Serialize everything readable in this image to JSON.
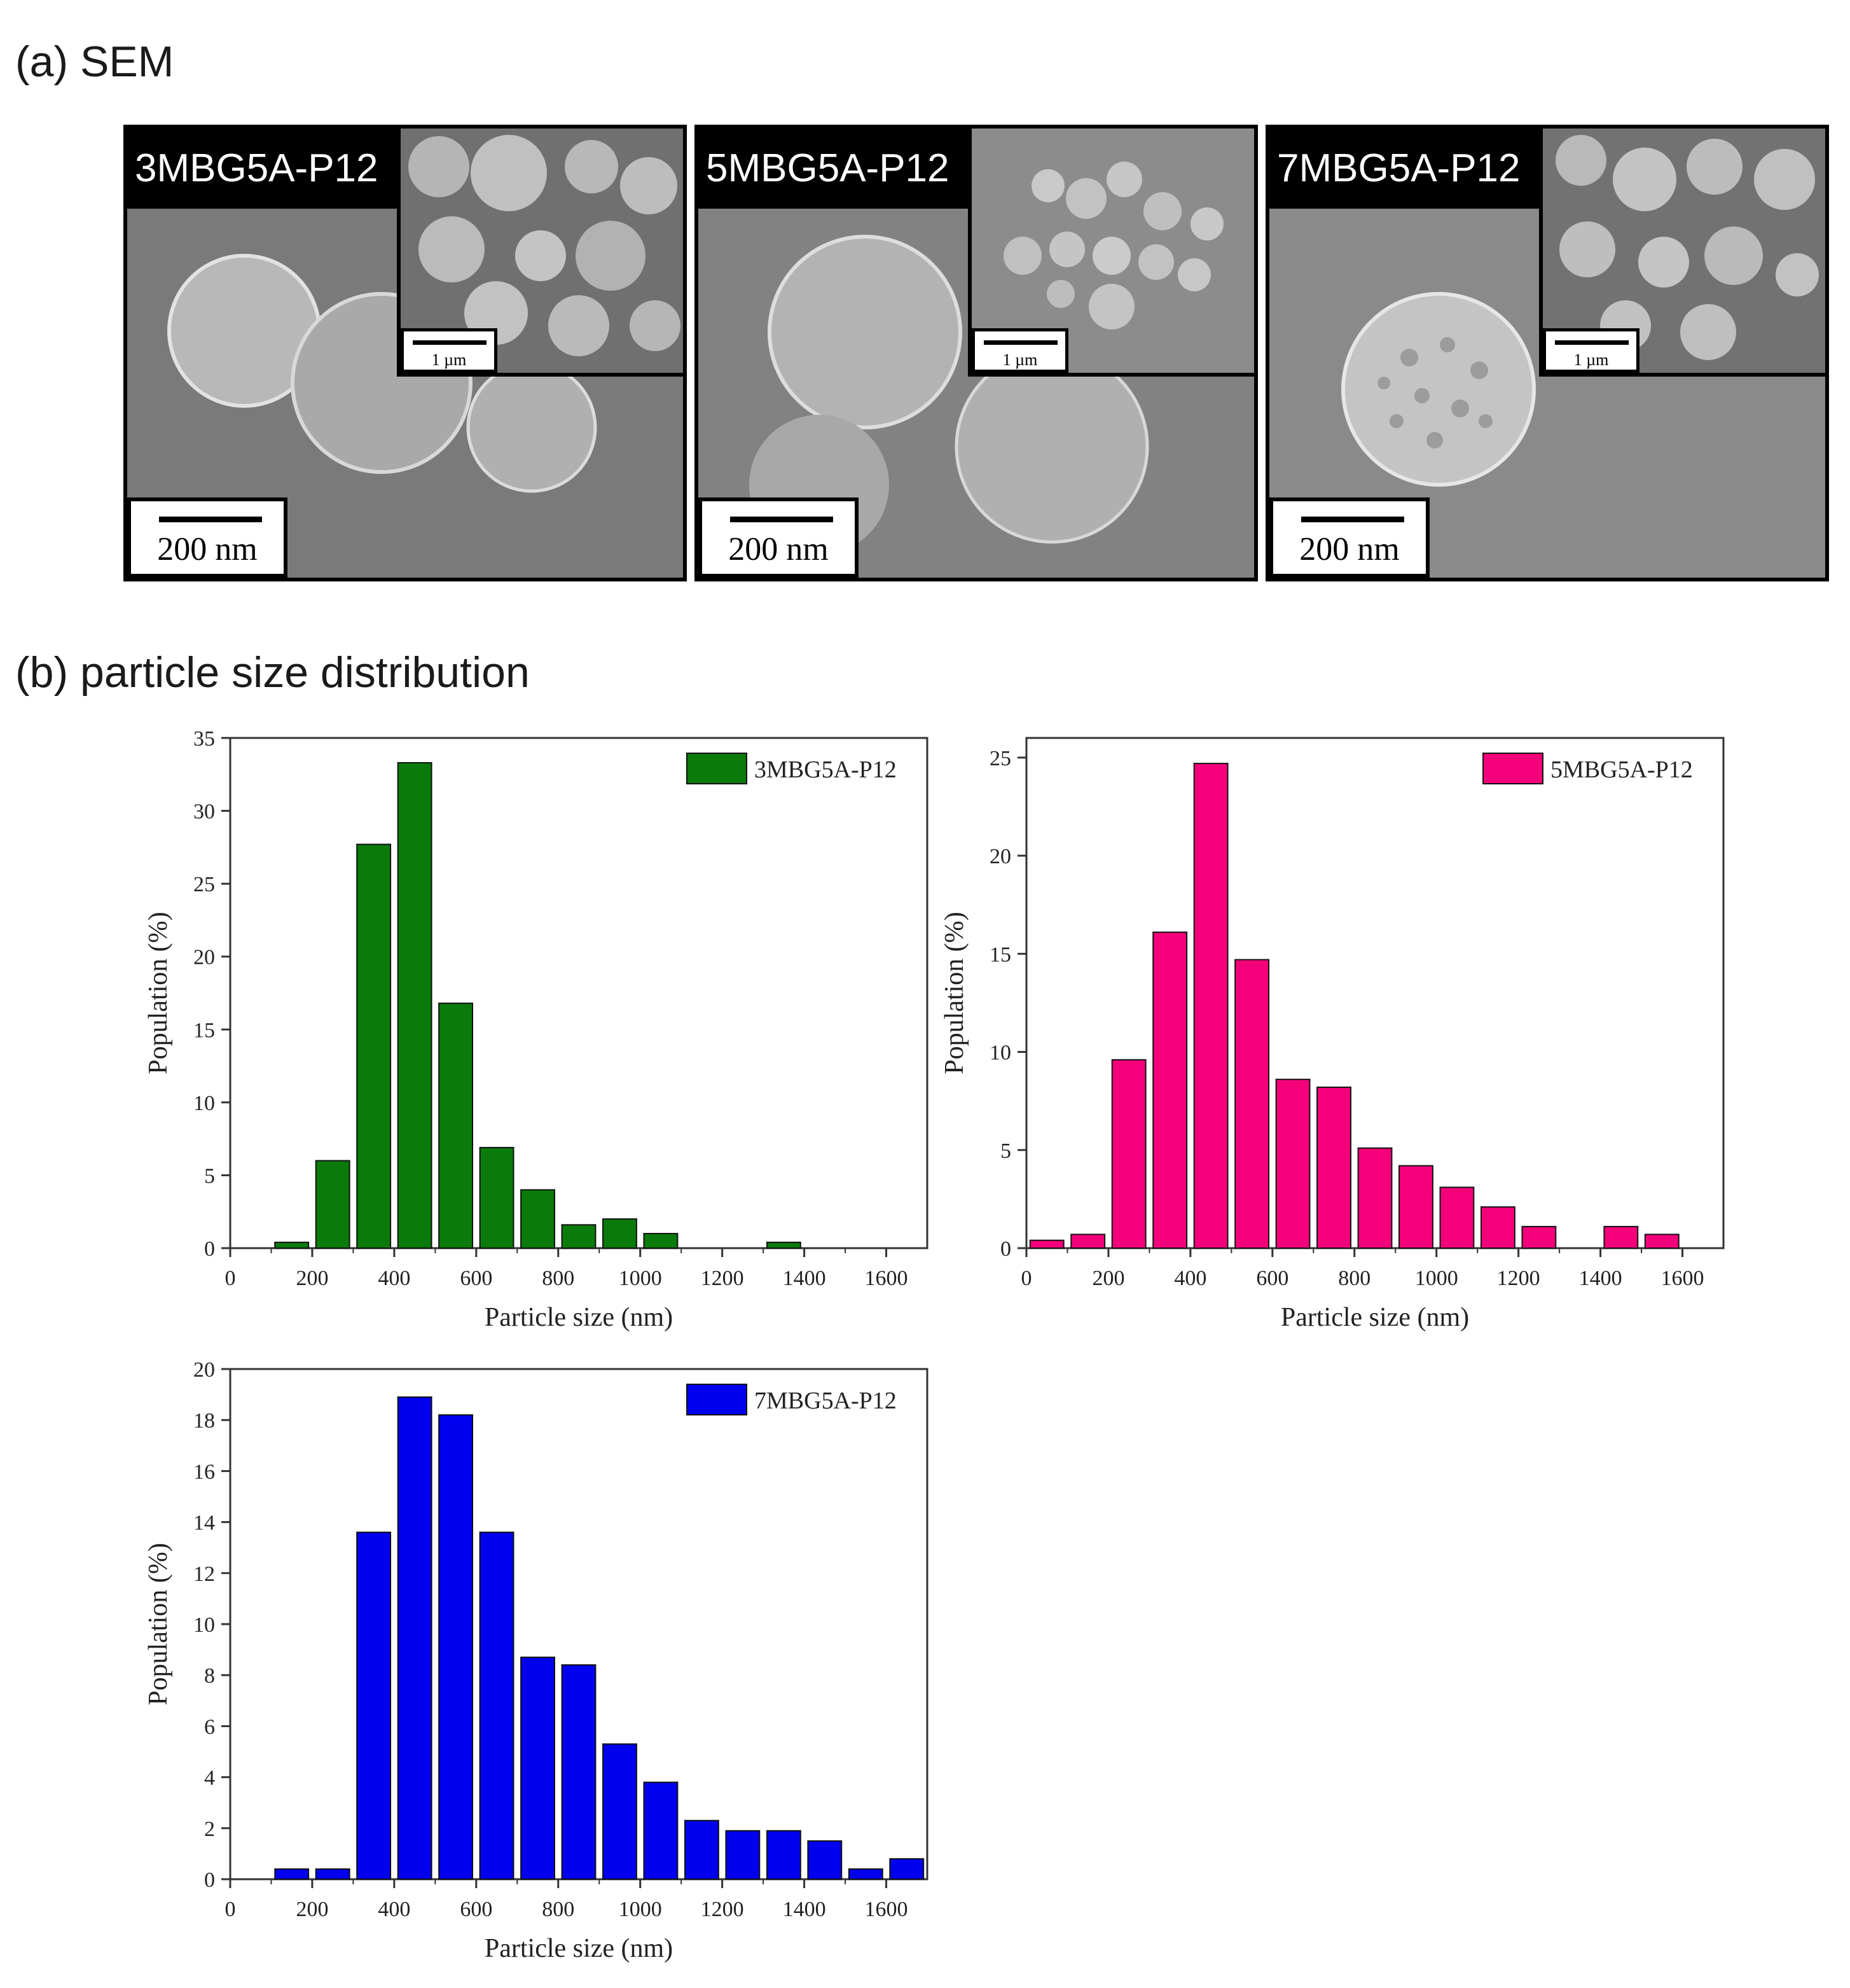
{
  "sections": {
    "a": "(a) SEM",
    "b": "(b) particle size distribution"
  },
  "sem_panels": [
    {
      "label": "3MBG5A-P12",
      "main_scale": "200 nm",
      "inset_scale": "1 µm"
    },
    {
      "label": "5MBG5A-P12",
      "main_scale": "200 nm",
      "inset_scale": "1 µm"
    },
    {
      "label": "7MBG5A-P12",
      "main_scale": "200 nm",
      "inset_scale": "1 µm"
    }
  ],
  "colors": {
    "green": "#0a7a0a",
    "pink": "#f5007b",
    "blue": "#0000ee"
  },
  "chart_data": [
    {
      "type": "bar",
      "title": "",
      "legend": "3MBG5A-P12",
      "legend_position": "top-right",
      "color": "#0a7a0a",
      "xlabel": "Particle size (nm)",
      "ylabel": "Population (%)",
      "xlim": [
        0,
        1700
      ],
      "ylim": [
        0,
        35
      ],
      "xticks": [
        0,
        200,
        400,
        600,
        800,
        1000,
        1200,
        1400,
        1600
      ],
      "yticks": [
        0,
        5,
        10,
        15,
        20,
        25,
        30,
        35
      ],
      "bin_width": 100,
      "x": [
        150,
        250,
        350,
        450,
        550,
        650,
        750,
        850,
        950,
        1050,
        1150,
        1250,
        1350
      ],
      "values": [
        0.4,
        6.0,
        27.7,
        33.3,
        16.8,
        6.9,
        4.0,
        1.6,
        2.0,
        1.0,
        0,
        0,
        0.4
      ]
    },
    {
      "type": "bar",
      "title": "",
      "legend": "5MBG5A-P12",
      "legend_position": "top-right",
      "color": "#f5007b",
      "xlabel": "Particle size (nm)",
      "ylabel": "Population (%)",
      "xlim": [
        0,
        1700
      ],
      "ylim": [
        0,
        26
      ],
      "xticks": [
        0,
        200,
        400,
        600,
        800,
        1000,
        1200,
        1400,
        1600
      ],
      "yticks": [
        0,
        5,
        10,
        15,
        20,
        25
      ],
      "bin_width": 100,
      "x": [
        50,
        150,
        250,
        350,
        450,
        550,
        650,
        750,
        850,
        950,
        1050,
        1150,
        1250,
        1350,
        1450,
        1550
      ],
      "values": [
        0.4,
        0.7,
        9.6,
        16.1,
        24.7,
        14.7,
        8.6,
        8.2,
        5.1,
        4.2,
        3.1,
        2.1,
        1.1,
        0,
        1.1,
        0.7
      ]
    },
    {
      "type": "bar",
      "title": "",
      "legend": "7MBG5A-P12",
      "legend_position": "top-right",
      "color": "#0000ee",
      "xlabel": "Particle size (nm)",
      "ylabel": "Population (%)",
      "xlim": [
        0,
        1700
      ],
      "ylim": [
        0,
        20
      ],
      "xticks": [
        0,
        200,
        400,
        600,
        800,
        1000,
        1200,
        1400,
        1600
      ],
      "yticks": [
        0,
        2,
        4,
        6,
        8,
        10,
        12,
        14,
        16,
        18,
        20
      ],
      "bin_width": 100,
      "x": [
        150,
        250,
        350,
        450,
        550,
        650,
        750,
        850,
        950,
        1050,
        1150,
        1250,
        1350,
        1450,
        1550,
        1650
      ],
      "values": [
        0.4,
        0.4,
        13.6,
        18.9,
        18.2,
        13.6,
        8.7,
        8.4,
        5.3,
        3.8,
        2.3,
        1.9,
        1.9,
        1.5,
        0.4,
        0.8
      ]
    }
  ]
}
